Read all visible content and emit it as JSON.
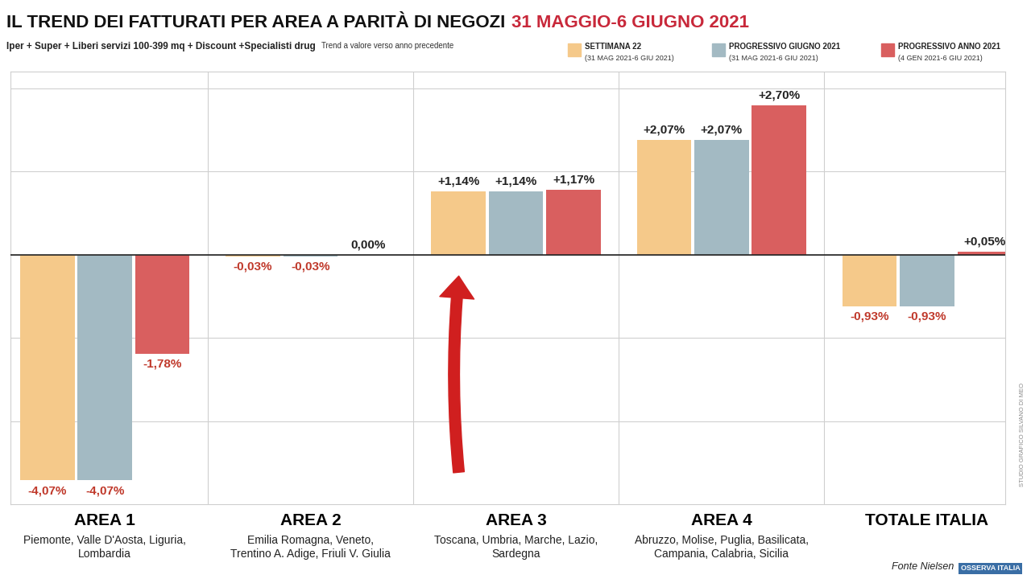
{
  "chart_data": {
    "type": "bar",
    "title": "IL TREND DEI FATTURATI PER AREA A PARITÀ DI NEGOZI",
    "title_date": "31 MAGGIO-6 GIUGNO 2021",
    "subtitle": "Iper + Super + Liberi servizi 100-399 mq + Discount +Specialisti drug",
    "subtitle_note": "Trend a valore verso anno precedente",
    "categories": [
      "AREA 1",
      "AREA 2",
      "AREA 3",
      "AREA 4",
      "TOTALE ITALIA"
    ],
    "regions": [
      "Piemonte, Valle D'Aosta, Liguria,\nLombardia",
      "Emilia Romagna, Veneto,\nTrentino A. Adige, Friuli V. Giulia",
      "Toscana, Umbria, Marche, Lazio,\nSardegna",
      "Abruzzo, Molise, Puglia, Basilicata,\nCampania, Calabria, Sicilia",
      null
    ],
    "series": [
      {
        "name": "SETTIMANA 22",
        "period": "(31 MAG 2021-6 GIU 2021)",
        "color": "#F5C98A",
        "values": [
          -4.07,
          -0.03,
          1.14,
          2.07,
          -0.93
        ],
        "value_labels": [
          "-4,07%",
          "-0,03%",
          "+1,14%",
          "+2,07%",
          "-0,93%"
        ]
      },
      {
        "name": "PROGRESSIVO GIUGNO 2021",
        "period": "(31 MAG 2021-6 GIU 2021)",
        "color": "#A3BAC3",
        "values": [
          -4.07,
          -0.03,
          1.14,
          2.07,
          -0.93
        ],
        "value_labels": [
          "-4,07%",
          "-0,03%",
          "+1,14%",
          "+2,07%",
          "-0,93%"
        ]
      },
      {
        "name": "PROGRESSIVO ANNO 2021",
        "period": "(4 GEN 2021-6 GIU 2021)",
        "color": "#D95F5F",
        "values": [
          -1.78,
          0.0,
          1.17,
          2.7,
          0.05
        ],
        "value_labels": [
          "-1,78%",
          "0,00%",
          "+1,17%",
          "+2,70%",
          "+0,05%"
        ]
      }
    ],
    "ylim": [
      -4.5,
      3.3
    ],
    "yticks": [
      -3,
      -1.5,
      0,
      1.5,
      3
    ],
    "grid": true,
    "tick_labels": "x",
    "data_labels": true,
    "source": "Fonte Nielsen",
    "logo": "OSSERVA ITALIA",
    "credit": "STUDIO GRAFICO SILVANO DI MEO"
  }
}
